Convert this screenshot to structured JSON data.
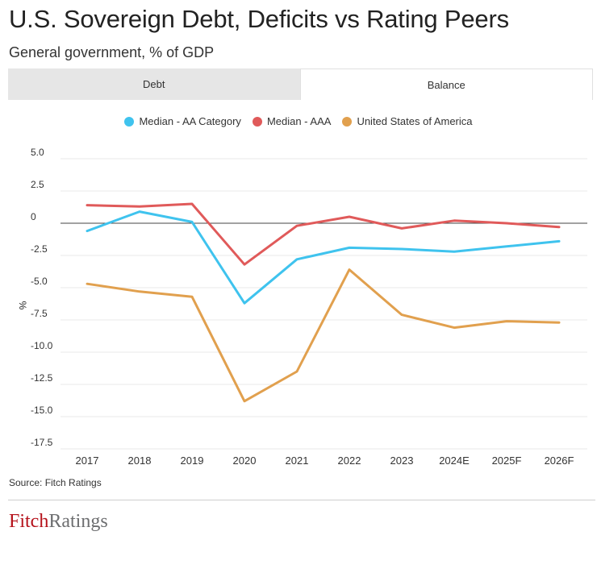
{
  "header": {
    "title": "U.S. Sovereign Debt, Deficits vs Rating Peers",
    "subtitle": "General government, % of GDP"
  },
  "tabs": [
    {
      "label": "Debt",
      "active": false
    },
    {
      "label": "Balance",
      "active": true
    }
  ],
  "chart_data": {
    "type": "line",
    "title": "U.S. Sovereign Debt, Deficits vs Rating Peers",
    "subtitle": "General government, % of GDP",
    "xlabel": "",
    "ylabel": "%",
    "categories": [
      "2017",
      "2018",
      "2019",
      "2020",
      "2021",
      "2022",
      "2023",
      "2024E",
      "2025F",
      "2026F"
    ],
    "ylim": [
      -17.5,
      5.0
    ],
    "yticks": [
      5.0,
      2.5,
      0,
      -2.5,
      -5.0,
      -7.5,
      -10.0,
      -12.5,
      -15.0,
      -17.5
    ],
    "ytick_labels": [
      "5.0",
      "2.5",
      "0",
      "-2.5",
      "-5.0",
      "-7.5",
      "-10.0",
      "-12.5",
      "-15.0",
      "-17.5"
    ],
    "grid": true,
    "legend_position": "top-center",
    "series": [
      {
        "name": "Median - AA Category",
        "color": "#3fc3ee",
        "values": [
          -0.6,
          0.9,
          0.1,
          -6.2,
          -2.8,
          -1.9,
          -2.0,
          -2.2,
          -1.8,
          -1.4
        ]
      },
      {
        "name": "Median - AAA",
        "color": "#e05a5a",
        "values": [
          1.4,
          1.3,
          1.5,
          -3.2,
          -0.2,
          0.5,
          -0.4,
          0.2,
          0.0,
          -0.3
        ]
      },
      {
        "name": "United States of America",
        "color": "#e1a04e",
        "values": [
          -4.7,
          -5.3,
          -5.7,
          -13.8,
          -11.5,
          -3.6,
          -7.1,
          -8.1,
          -7.6,
          -7.7
        ]
      }
    ]
  },
  "footer": {
    "source": "Source: Fitch Ratings",
    "logo_part1": "Fitch",
    "logo_part2": "Ratings"
  }
}
